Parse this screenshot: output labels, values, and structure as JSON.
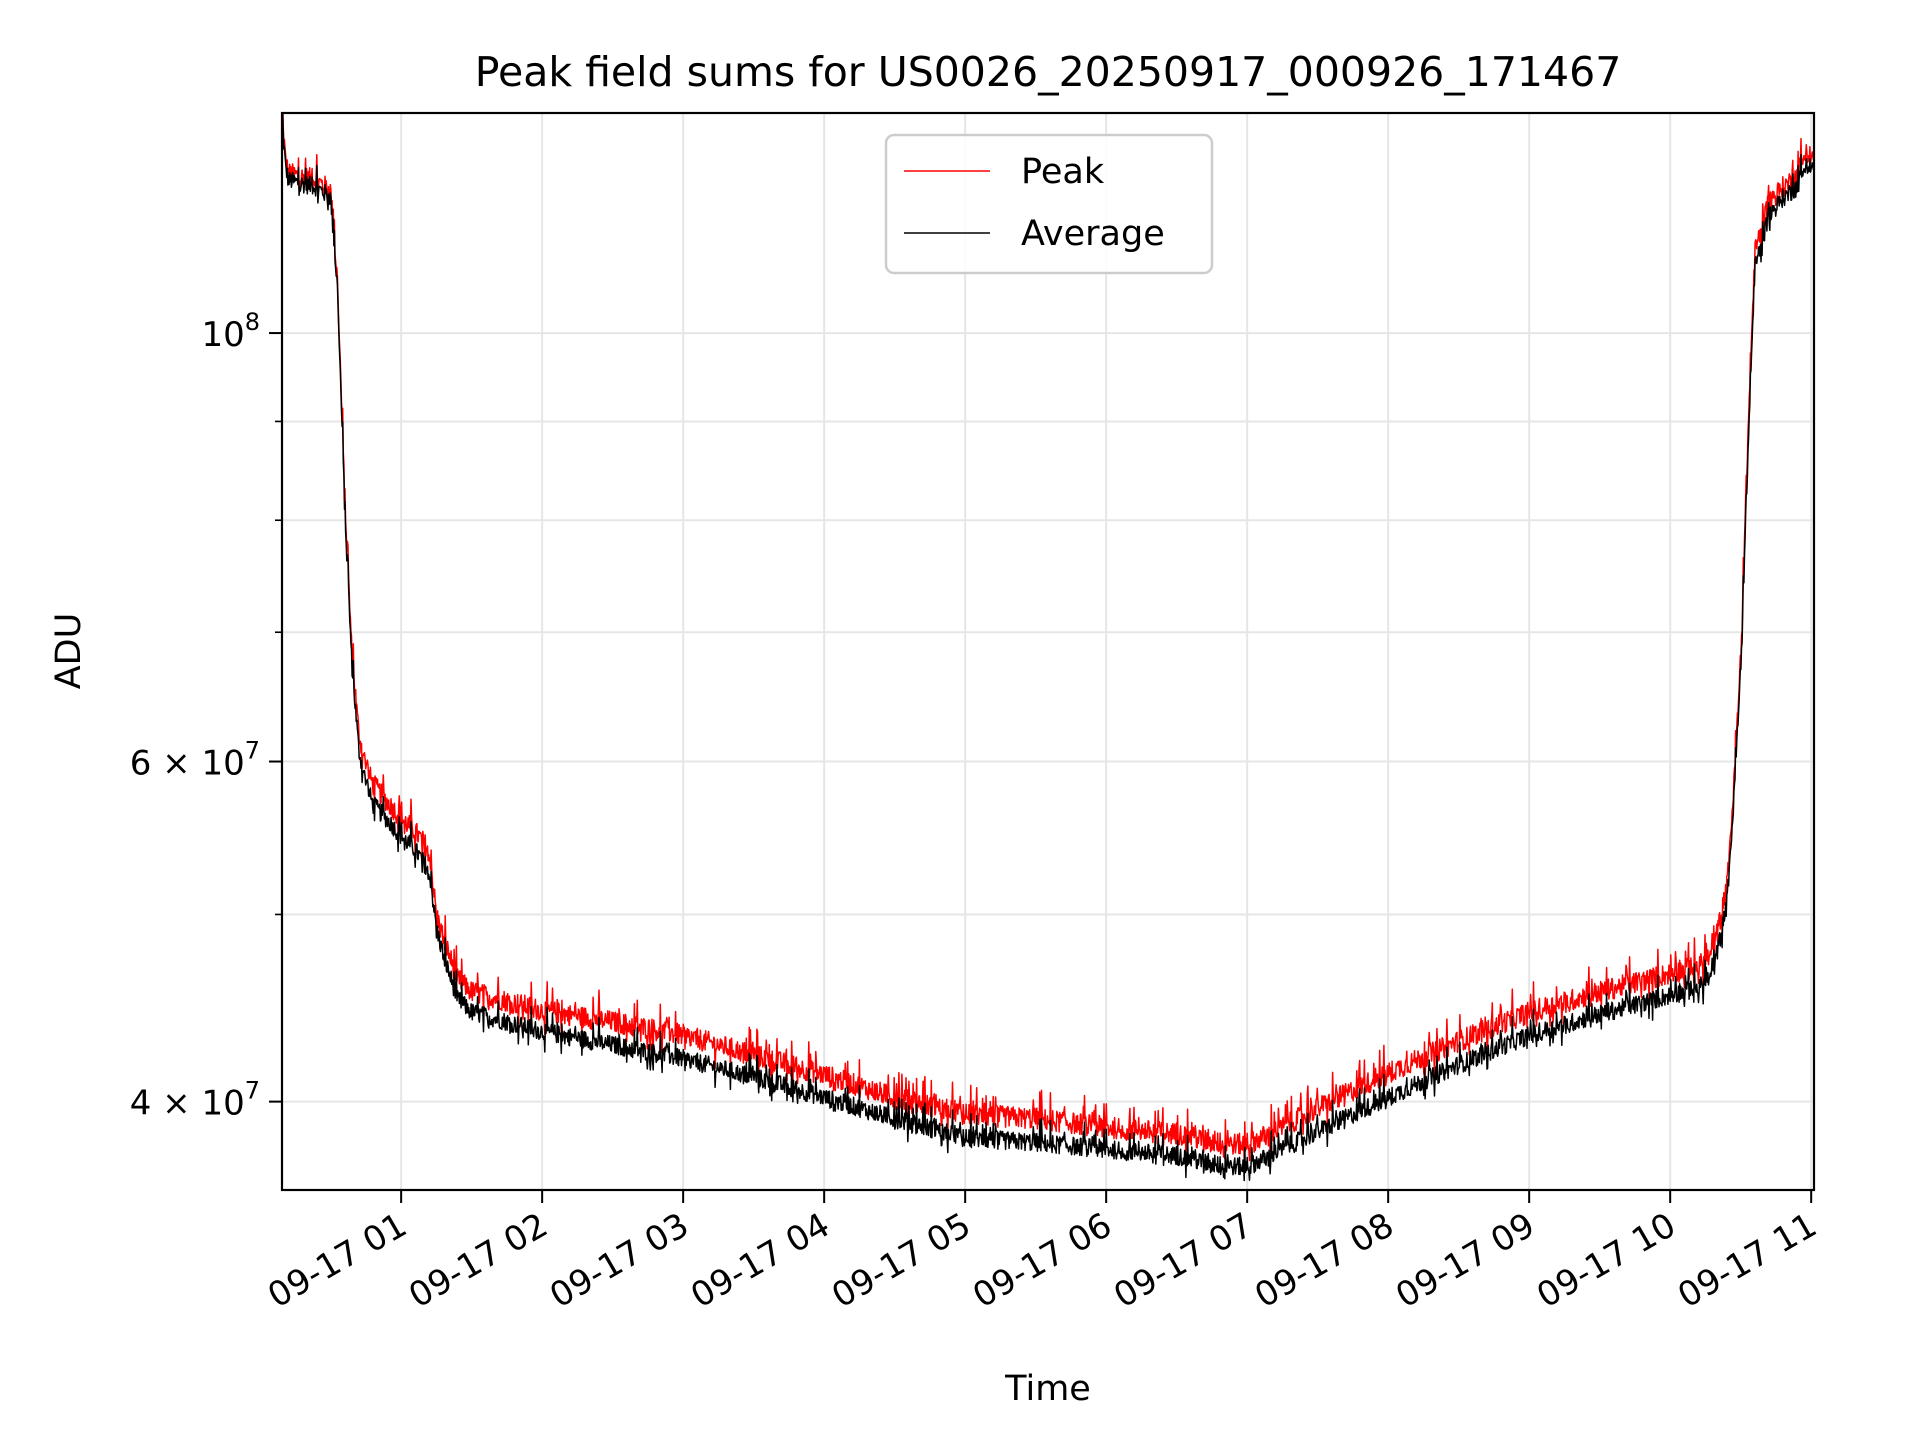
{
  "chart_data": {
    "type": "line",
    "title": "Peak field sums for US0026_20250917_000926_171467",
    "xlabel": "Time",
    "ylabel": "ADU",
    "yscale": "log",
    "grid": true,
    "legend_position": "upper-center",
    "x_unit": "hours since 2025-09-17 00:00",
    "xlim": [
      0.155,
      11.02
    ],
    "ylim": [
      36000000,
      130000000
    ],
    "x_ticks": [
      {
        "value": 1,
        "label": "09-17 01"
      },
      {
        "value": 2,
        "label": "09-17 02"
      },
      {
        "value": 3,
        "label": "09-17 03"
      },
      {
        "value": 4,
        "label": "09-17 04"
      },
      {
        "value": 5,
        "label": "09-17 05"
      },
      {
        "value": 6,
        "label": "09-17 06"
      },
      {
        "value": 7,
        "label": "09-17 07"
      },
      {
        "value": 8,
        "label": "09-17 08"
      },
      {
        "value": 9,
        "label": "09-17 09"
      },
      {
        "value": 10,
        "label": "09-17 10"
      },
      {
        "value": 11,
        "label": "09-17 11"
      }
    ],
    "y_ticks_major": [
      {
        "value": 40000000,
        "base": "4 × 10",
        "exp": "7"
      },
      {
        "value": 60000000,
        "base": "6 × 10",
        "exp": "7"
      },
      {
        "value": 100000000,
        "base": "10",
        "exp": "8"
      }
    ],
    "y_grid_minor": [
      50000000,
      70000000,
      80000000,
      90000000
    ],
    "colors": {
      "peak": "#ff0000",
      "average": "#000000",
      "grid": "#e6e6e6"
    },
    "series": [
      {
        "name": "Peak",
        "color": "#ff0000",
        "noise_amplitude": 0.013,
        "x": [
          0.155,
          0.18,
          0.2,
          0.3,
          0.4,
          0.5,
          0.55,
          0.6,
          0.65,
          0.7,
          0.75,
          0.8,
          0.9,
          1.0,
          1.1,
          1.2,
          1.25,
          1.3,
          1.4,
          1.5,
          1.75,
          2.0,
          2.5,
          3.0,
          3.5,
          4.0,
          4.5,
          5.0,
          5.5,
          6.0,
          6.5,
          6.75,
          7.0,
          7.25,
          7.5,
          8.0,
          8.5,
          9.0,
          9.5,
          10.0,
          10.2,
          10.3,
          10.4,
          10.45,
          10.5,
          10.55,
          10.6,
          10.7,
          10.8,
          10.9,
          10.95,
          11.0,
          11.02
        ],
        "y": [
          130000000,
          123000000,
          121000000,
          120500000,
          120000000,
          118500000,
          106000000,
          82000000,
          68500000,
          62000000,
          59700000,
          58400000,
          57200000,
          56100000,
          55200000,
          54000000,
          50000000,
          48600000,
          46300000,
          45600000,
          45100000,
          44600000,
          44000000,
          43300000,
          42300000,
          41300000,
          40200000,
          39400000,
          39200000,
          38800000,
          38500000,
          38100000,
          38000000,
          38800000,
          39700000,
          41400000,
          43000000,
          44500000,
          45600000,
          46600000,
          47000000,
          47700000,
          51500000,
          58000000,
          68000000,
          88000000,
          110000000,
          117000000,
          119000000,
          120500000,
          124000000,
          123500000,
          123500000
        ]
      },
      {
        "name": "Average",
        "color": "#000000",
        "noise_amplitude": 0.011,
        "x": [
          0.155,
          0.18,
          0.2,
          0.3,
          0.4,
          0.5,
          0.55,
          0.6,
          0.65,
          0.7,
          0.75,
          0.8,
          0.9,
          1.0,
          1.1,
          1.2,
          1.25,
          1.3,
          1.4,
          1.5,
          1.75,
          2.0,
          2.5,
          3.0,
          3.5,
          4.0,
          4.5,
          5.0,
          5.5,
          6.0,
          6.5,
          6.75,
          7.0,
          7.25,
          7.5,
          8.0,
          8.5,
          9.0,
          9.5,
          10.0,
          10.2,
          10.3,
          10.4,
          10.45,
          10.5,
          10.55,
          10.6,
          10.7,
          10.8,
          10.9,
          10.95,
          11.0,
          11.02
        ],
        "y": [
          129000000,
          122000000,
          120000000,
          119500000,
          119000000,
          117500000,
          105000000,
          81000000,
          67500000,
          60800000,
          58500000,
          57000000,
          56000000,
          54900000,
          54000000,
          52700000,
          49200000,
          47600000,
          45200000,
          44500000,
          44000000,
          43500000,
          42800000,
          42100000,
          41200000,
          40200000,
          39200000,
          38300000,
          38100000,
          37800000,
          37500000,
          37100000,
          37000000,
          37800000,
          38600000,
          40200000,
          41800000,
          43300000,
          44400000,
          45400000,
          45800000,
          46500000,
          50500000,
          57000000,
          67000000,
          86000000,
          108000000,
          115000000,
          117500000,
          119000000,
          122000000,
          122000000,
          122000000
        ]
      }
    ]
  }
}
